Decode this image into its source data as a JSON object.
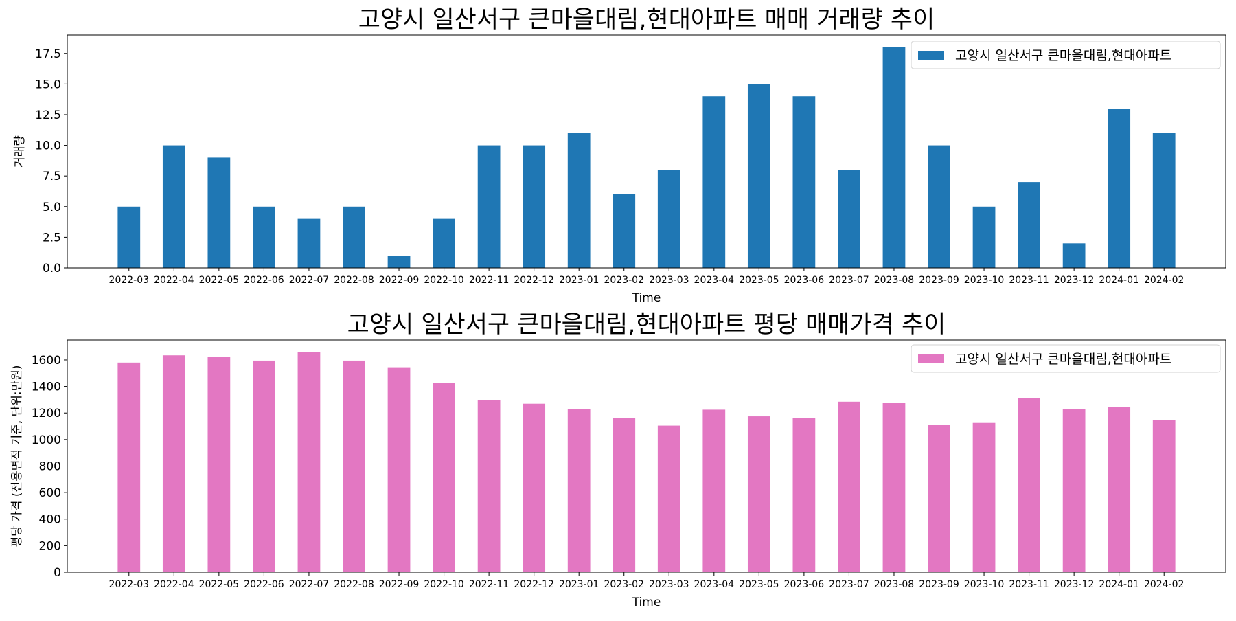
{
  "chart_data": [
    {
      "type": "bar",
      "title": "고양시 일산서구 큰마을대림,현대아파트 매매 거래량 추이",
      "xlabel": "Time",
      "ylabel": "거래량",
      "ylim": [
        0,
        19
      ],
      "yticks": [
        "0.0",
        "2.5",
        "5.0",
        "7.5",
        "10.0",
        "12.5",
        "15.0",
        "17.5"
      ],
      "ytick_values": [
        0,
        2.5,
        5,
        7.5,
        10,
        12.5,
        15,
        17.5
      ],
      "legend_position": "top-right",
      "color": "#1f77b4",
      "categories": [
        "2022-03",
        "2022-04",
        "2022-05",
        "2022-06",
        "2022-07",
        "2022-08",
        "2022-09",
        "2022-10",
        "2022-11",
        "2022-12",
        "2023-01",
        "2023-02",
        "2023-03",
        "2023-04",
        "2023-05",
        "2023-06",
        "2023-07",
        "2023-08",
        "2023-09",
        "2023-10",
        "2023-11",
        "2023-12",
        "2024-01",
        "2024-02"
      ],
      "series": [
        {
          "name": "고양시 일산서구 큰마을대림,현대아파트",
          "values": [
            5,
            10,
            9,
            5,
            4,
            5,
            1,
            4,
            10,
            10,
            11,
            6,
            8,
            14,
            15,
            14,
            8,
            18,
            10,
            5,
            7,
            2,
            13,
            11
          ]
        }
      ]
    },
    {
      "type": "bar",
      "title": "고양시 일산서구 큰마을대림,현대아파트 평당 매매가격 추이",
      "xlabel": "Time",
      "ylabel": "평당 가격 (전용면적 기준, 단위:만원)",
      "ylim": [
        0,
        1750
      ],
      "yticks": [
        "0",
        "200",
        "400",
        "600",
        "800",
        "1000",
        "1200",
        "1400",
        "1600"
      ],
      "ytick_values": [
        0,
        200,
        400,
        600,
        800,
        1000,
        1200,
        1400,
        1600
      ],
      "legend_position": "top-right",
      "color": "#e377c2",
      "categories": [
        "2022-03",
        "2022-04",
        "2022-05",
        "2022-06",
        "2022-07",
        "2022-08",
        "2022-09",
        "2022-10",
        "2022-11",
        "2022-12",
        "2023-01",
        "2023-02",
        "2023-03",
        "2023-04",
        "2023-05",
        "2023-06",
        "2023-07",
        "2023-08",
        "2023-09",
        "2023-10",
        "2023-11",
        "2023-12",
        "2024-01",
        "2024-02"
      ],
      "series": [
        {
          "name": "고양시 일산서구 큰마을대림,현대아파트",
          "values": [
            1580,
            1635,
            1625,
            1595,
            1660,
            1595,
            1545,
            1425,
            1295,
            1270,
            1230,
            1160,
            1105,
            1225,
            1175,
            1160,
            1285,
            1275,
            1110,
            1125,
            1315,
            1230,
            1245,
            1145
          ]
        }
      ]
    }
  ]
}
